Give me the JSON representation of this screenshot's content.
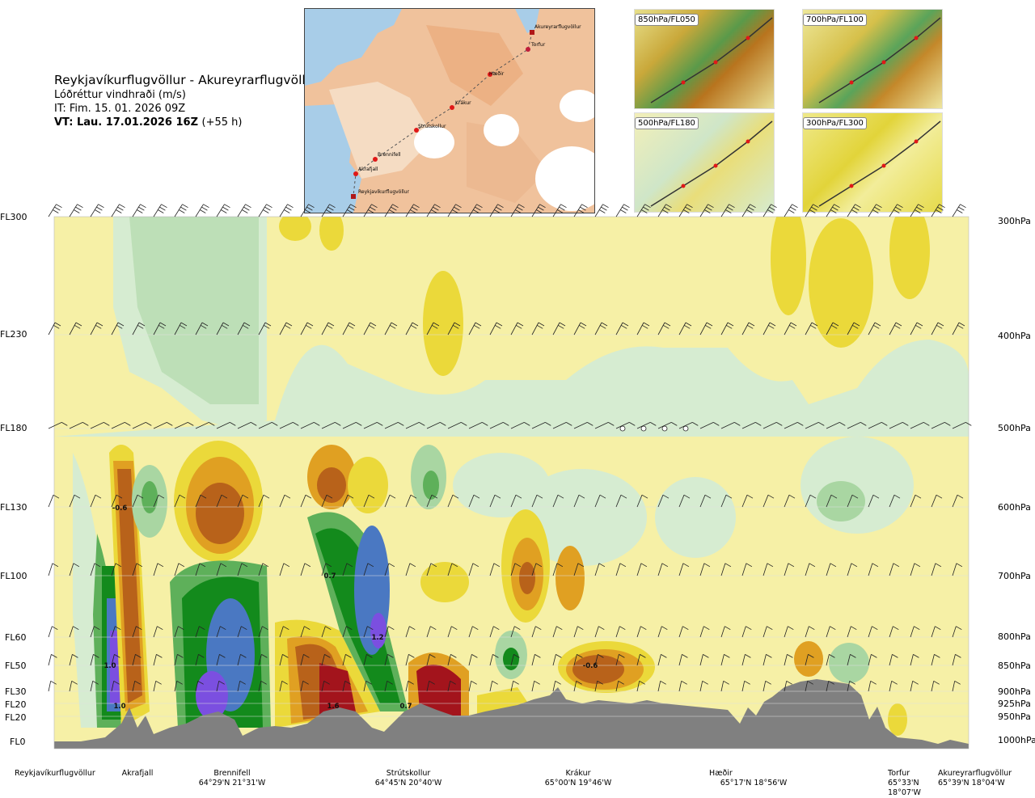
{
  "title": {
    "route": "Reykjavíkurflugvöllur - Akureyrarflugvöllur",
    "variable": "Lóðréttur vindhraði (m/s)",
    "it": "IT: Fim. 15. 01. 2026 09Z",
    "vt_bold": "VT: Lau. 17.01.2026 16Z",
    "vt_lead": "(+55 h)"
  },
  "map": {
    "points": [
      {
        "name": "Akureyrarflugvöllur"
      },
      {
        "name": "Torfur"
      },
      {
        "name": "Hæðir"
      },
      {
        "name": "Krákur"
      },
      {
        "name": "Strútskollur"
      },
      {
        "name": "Brennifell"
      },
      {
        "name": "Akrafjall"
      },
      {
        "name": "Reykjavíkurflugvöllur"
      }
    ]
  },
  "thumbnails": [
    {
      "label": "850hPa/FL050"
    },
    {
      "label": "700hPa/FL100"
    },
    {
      "label": "500hPa/FL180"
    },
    {
      "label": "300hPa/FL300"
    }
  ],
  "flight_levels": [
    "FL300",
    "FL230",
    "FL180",
    "FL130",
    "FL100",
    "FL60",
    "FL50",
    "FL30",
    "FL20",
    "FL20",
    "FL0"
  ],
  "pressure_levels": [
    "300hPa",
    "400hPa",
    "500hPa",
    "600hPa",
    "700hPa",
    "800hPa",
    "850hPa",
    "900hPa",
    "925hPa",
    "950hPa",
    "1000hPa"
  ],
  "contour_values": [
    "-0.6",
    "1.0",
    "1.0",
    "0.7",
    "1.2",
    "1.6",
    "0.7",
    "-0.6"
  ],
  "stations": [
    {
      "name": "Reykjavíkurflugvöllur",
      "coord": ""
    },
    {
      "name": "Akrafjall",
      "coord": ""
    },
    {
      "name": "Brennifell",
      "coord": "64°29'N 21°31'W"
    },
    {
      "name": "Strútskollur",
      "coord": "64°45'N 20°40'W"
    },
    {
      "name": "Krákur",
      "coord": "65°00'N 19°46'W"
    },
    {
      "name": "Hæðir",
      "coord": "65°17'N 18°56'W"
    },
    {
      "name": "Torfur",
      "coord": "65°33'N 18°07'W"
    },
    {
      "name": "Akureyrarflugvöllur",
      "coord": "65°39'N 18°04'W"
    }
  ],
  "colors": {
    "pale_yellow": "#f6f0a6",
    "yellow": "#ebd93a",
    "orange": "#e0a022",
    "brown": "#b8621a",
    "dark_red": "#a3141c",
    "pale_green": "#d6ecd1",
    "light_green": "#a9d6a2",
    "green": "#5eb05a",
    "dark_green": "#138a1c",
    "blue": "#4a78c2",
    "violet": "#7b4fe0",
    "terrain": "#808080"
  }
}
